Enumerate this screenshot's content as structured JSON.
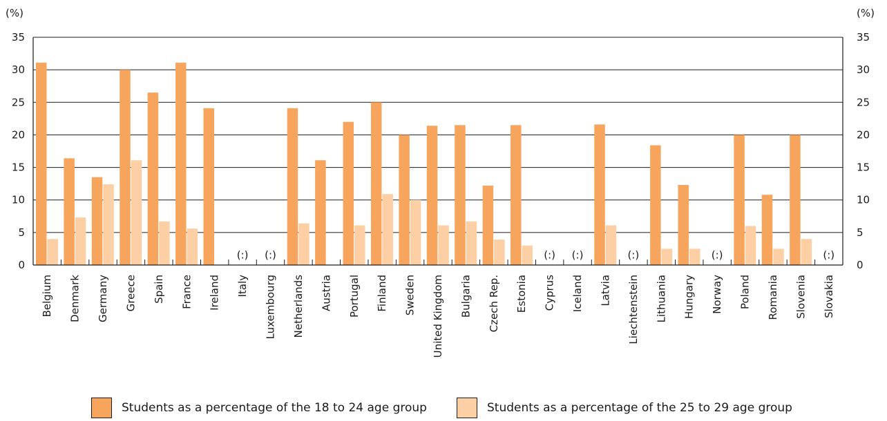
{
  "chart_data": {
    "type": "bar",
    "y_unit_label": "(%)",
    "ylim": [
      0,
      35
    ],
    "yticks": [
      0,
      5,
      10,
      15,
      20,
      25,
      30,
      35
    ],
    "grid": true,
    "missing_label": "(:)",
    "categories": [
      "Belgium",
      "Denmark",
      "Germany",
      "Greece",
      "Spain",
      "France",
      "Ireland",
      "Italy",
      "Luxembourg",
      "Netherlands",
      "Austria",
      "Portugal",
      "Finland",
      "Sweden",
      "United Kingdom",
      "Bulgaria",
      "Czech Rep.",
      "Estonia",
      "Cyprus",
      "Iceland",
      "Latvia",
      "Liechtenstein",
      "Lithuania",
      "Hungary",
      "Norway",
      "Poland",
      "Romania",
      "Slovenia",
      "Slovakia"
    ],
    "series": [
      {
        "name": "Students as a percentage of the 18 to 24 age group",
        "color": "#f7a45c",
        "values": [
          31.1,
          16.4,
          13.5,
          30.0,
          26.5,
          31.1,
          24.1,
          null,
          null,
          24.1,
          16.1,
          22.0,
          25.0,
          20.0,
          21.4,
          21.5,
          12.2,
          21.5,
          null,
          null,
          21.6,
          null,
          18.4,
          12.3,
          null,
          20.0,
          10.8,
          20.0,
          null
        ]
      },
      {
        "name": "Students as a percentage of the 25 to 29 age group",
        "color": "#fcd0a4",
        "values": [
          4.0,
          7.3,
          12.4,
          16.1,
          6.7,
          5.6,
          null,
          null,
          null,
          6.4,
          null,
          6.1,
          10.9,
          10.0,
          6.1,
          6.7,
          3.9,
          3.0,
          null,
          null,
          6.1,
          null,
          2.5,
          2.5,
          null,
          6.0,
          2.5,
          4.0,
          null
        ]
      }
    ],
    "legend_position": "bottom"
  }
}
